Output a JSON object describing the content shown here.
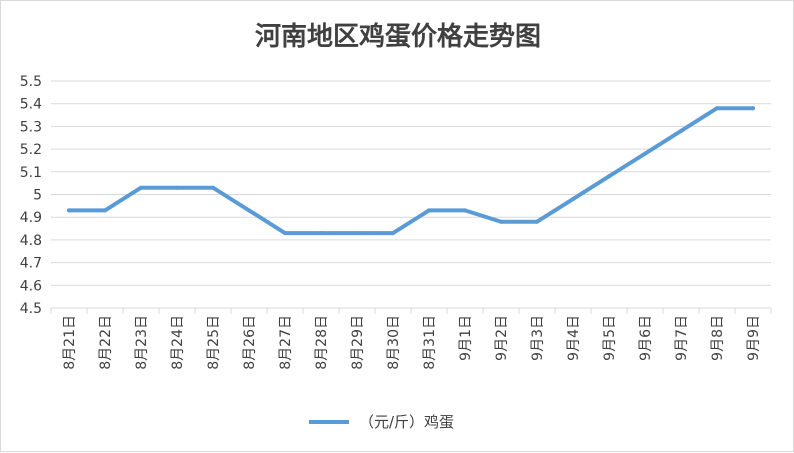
{
  "chart_data": {
    "type": "line",
    "title": "河南地区鸡蛋价格走势图",
    "xlabel": "",
    "ylabel": "",
    "categories": [
      "8月21日",
      "8月22日",
      "8月23日",
      "8月24日",
      "8月25日",
      "8月26日",
      "8月27日",
      "8月28日",
      "8月29日",
      "8月30日",
      "8月31日",
      "9月1日",
      "9月2日",
      "9月3日",
      "9月4日",
      "9月5日",
      "9月6日",
      "9月7日",
      "9月8日",
      "9月9日"
    ],
    "series": [
      {
        "name": "（元/斤）鸡蛋",
        "values": [
          4.93,
          4.93,
          5.03,
          5.03,
          5.03,
          4.93,
          4.83,
          4.83,
          4.83,
          4.83,
          4.93,
          4.93,
          4.88,
          4.88,
          4.98,
          5.08,
          5.18,
          5.28,
          5.38,
          5.38
        ]
      }
    ],
    "ylim": [
      4.5,
      5.5
    ],
    "yticks": [
      4.5,
      4.6,
      4.7,
      4.8,
      4.9,
      5,
      5.1,
      5.2,
      5.3,
      5.4,
      5.5
    ],
    "grid": true,
    "legend_position": "bottom",
    "colors": {
      "series": "#5b9bd5",
      "grid": "#d9d9d9",
      "text": "#404040"
    }
  }
}
